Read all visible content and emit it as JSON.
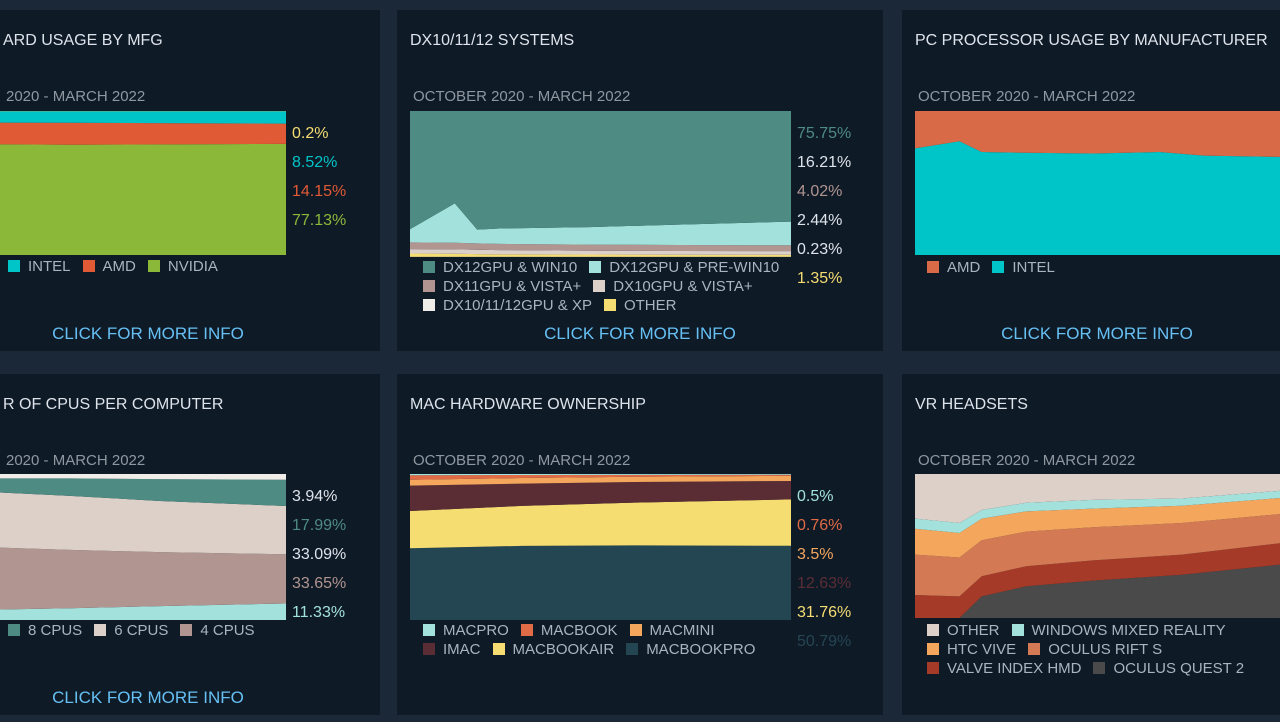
{
  "panels": [
    {
      "title": "ARD USAGE BY MFG",
      "date_range": "2020 - MARCH 2022",
      "more_link": "CLICK FOR MORE INFO",
      "legend": [
        {
          "label": "INTEL",
          "color": "#00c5c8"
        },
        {
          "label": "AMD",
          "color": "#e05a35"
        },
        {
          "label": "NVIDIA",
          "color": "#8cb83a"
        }
      ]
    },
    {
      "title": "DX10/11/12 SYSTEMS",
      "date_range": "OCTOBER 2020 - MARCH 2022",
      "more_link": "CLICK FOR MORE INFO",
      "legend": [
        {
          "label": "DX12GPU & WIN10",
          "color": "#4e8b82"
        },
        {
          "label": "DX12GPU & PRE-WIN10",
          "color": "#a3e2dc"
        },
        {
          "label": "DX11GPU & VISTA+",
          "color": "#b09590"
        },
        {
          "label": "DX10GPU & VISTA+",
          "color": "#dcd0c8"
        },
        {
          "label": "DX10/11/12GPU & XP",
          "color": "#f0ece8"
        },
        {
          "label": "OTHER",
          "color": "#f5dd72"
        }
      ]
    },
    {
      "title": "PC PROCESSOR USAGE BY MANUFACTURER",
      "date_range": "OCTOBER 2020 - MARCH 2022",
      "more_link": "CLICK FOR MORE INFO",
      "legend": [
        {
          "label": "AMD",
          "color": "#d86a48"
        },
        {
          "label": "INTEL",
          "color": "#00c5c8"
        }
      ]
    },
    {
      "title": "R OF CPUS PER COMPUTER",
      "date_range": "2020 - MARCH 2022",
      "more_link": "CLICK FOR MORE INFO",
      "legend": [
        {
          "label": "8 CPUS",
          "color": "#4e8b82"
        },
        {
          "label": "6 CPUS",
          "color": "#dcd0c8"
        },
        {
          "label": "4 CPUS",
          "color": "#b09590"
        }
      ]
    },
    {
      "title": "MAC HARDWARE OWNERSHIP",
      "date_range": "OCTOBER 2020 - MARCH 2022",
      "legend": [
        {
          "label": "MACPRO",
          "color": "#a3e2dc"
        },
        {
          "label": "MACBOOK",
          "color": "#e06b46"
        },
        {
          "label": "MACMINI",
          "color": "#f4a65c"
        },
        {
          "label": "IMAC",
          "color": "#5a2d35"
        },
        {
          "label": "MACBOOKAIR",
          "color": "#f5dd72"
        },
        {
          "label": "MACBOOKPRO",
          "color": "#244552"
        }
      ]
    },
    {
      "title": "VR HEADSETS",
      "date_range": "OCTOBER 2020 - MARCH 2022",
      "legend": [
        {
          "label": "OTHER",
          "color": "#dcd0c8"
        },
        {
          "label": "WINDOWS MIXED REALITY",
          "color": "#a3e2dc"
        },
        {
          "label": "HTC VIVE",
          "color": "#f4a65c"
        },
        {
          "label": "OCULUS RIFT S",
          "color": "#d37a55"
        },
        {
          "label": "VALVE INDEX HMD",
          "color": "#a53a28"
        },
        {
          "label": "OCULUS QUEST 2",
          "color": "#4a4a4a"
        }
      ]
    }
  ],
  "chart_data": [
    {
      "type": "area",
      "x": [
        "2020-10",
        "2021-03",
        "2021-08",
        "2022-03"
      ],
      "stacked": true,
      "series": [
        {
          "name": "NVIDIA",
          "values": [
            77.0,
            76.6,
            76.8,
            77.13
          ],
          "color": "#8cb83a"
        },
        {
          "name": "AMD",
          "values": [
            15.0,
            15.2,
            14.8,
            14.15
          ],
          "color": "#e05a35"
        },
        {
          "name": "INTEL",
          "values": [
            7.8,
            8.0,
            8.2,
            8.52
          ],
          "color": "#00c5c8"
        },
        {
          "name": "",
          "values": [
            0.2,
            0.2,
            0.2,
            0.2
          ],
          "color": "#f5dd72"
        }
      ],
      "value_labels": [
        {
          "text": "0.2%",
          "color": "#f5dd72"
        },
        {
          "text": "8.52%",
          "color": "#00c5c8"
        },
        {
          "text": "14.15%",
          "color": "#e05a35"
        },
        {
          "text": "77.13%",
          "color": "#8cb83a"
        }
      ]
    },
    {
      "type": "area",
      "stacked": true,
      "x": [
        "2020-10",
        "2020-12",
        "2021-01",
        "2021-02",
        "2021-06",
        "2021-10",
        "2022-03"
      ],
      "series": [
        {
          "name": "DX10/11/12GPU & XP",
          "values": [
            0.2,
            0.2,
            0.2,
            0.2,
            0.2,
            0.2,
            0.23
          ],
          "color": "#f0ece8"
        },
        {
          "name": "OTHER",
          "values": [
            2.2,
            2.0,
            1.8,
            1.7,
            1.5,
            1.4,
            1.35
          ],
          "color": "#f5dd72"
        },
        {
          "name": "DX10GPU & VISTA+",
          "values": [
            3.0,
            3.0,
            2.9,
            2.8,
            2.6,
            2.5,
            2.44
          ],
          "color": "#dcd0c8"
        },
        {
          "name": "DX11GPU & VISTA+",
          "values": [
            4.6,
            4.5,
            4.4,
            4.3,
            4.2,
            4.1,
            4.02
          ],
          "color": "#b09590"
        },
        {
          "name": "DX12GPU & PRE-WIN10",
          "values": [
            9.0,
            27.0,
            9.5,
            10.5,
            12.0,
            14.0,
            16.21
          ],
          "color": "#a3e2dc"
        },
        {
          "name": "DX12GPU & WIN10",
          "values": [
            81.0,
            63.3,
            81.2,
            80.5,
            79.5,
            77.8,
            75.75
          ],
          "color": "#4e8b82"
        }
      ],
      "value_labels": [
        {
          "text": "75.75%",
          "color": "#4e8b82"
        },
        {
          "text": "16.21%",
          "color": "#dde3ea"
        },
        {
          "text": "4.02%",
          "color": "#b09590"
        },
        {
          "text": "2.44%",
          "color": "#dde3ea"
        },
        {
          "text": "0.23%",
          "color": "#dde3ea"
        },
        {
          "text": "1.35%",
          "color": "#f5dd72"
        }
      ]
    },
    {
      "type": "area",
      "stacked": true,
      "x": [
        "2020-10",
        "2020-12",
        "2021-01",
        "2021-03",
        "2021-06",
        "2021-09",
        "2021-11",
        "2022-03"
      ],
      "series": [
        {
          "name": "INTEL",
          "values": [
            74.0,
            79.0,
            71.5,
            71.0,
            70.5,
            71.5,
            69.0,
            68.0
          ],
          "color": "#00c5c8"
        },
        {
          "name": "AMD",
          "values": [
            26.0,
            21.0,
            28.5,
            29.0,
            29.5,
            28.5,
            31.0,
            32.0
          ],
          "color": "#d86a48"
        }
      ]
    },
    {
      "type": "area",
      "stacked": true,
      "x": [
        "2020-10",
        "2021-03",
        "2021-08",
        "2022-03"
      ],
      "series": [
        {
          "name": "",
          "values": [
            7.0,
            8.0,
            9.5,
            11.33
          ],
          "color": "#a3e2dc"
        },
        {
          "name": "4 CPUS",
          "values": [
            43.0,
            40.0,
            37.0,
            33.65
          ],
          "color": "#b09590"
        },
        {
          "name": "6 CPUS",
          "values": [
            38.0,
            37.0,
            35.0,
            33.09
          ],
          "color": "#dcd0c8"
        },
        {
          "name": "8 CPUS",
          "values": [
            9.0,
            12.0,
            15.0,
            17.99
          ],
          "color": "#4e8b82"
        },
        {
          "name": "",
          "values": [
            3.0,
            3.0,
            3.5,
            3.94
          ],
          "color": "#f0ece8"
        }
      ],
      "value_labels": [
        {
          "text": "3.94%",
          "color": "#dde3ea"
        },
        {
          "text": "17.99%",
          "color": "#4e8b82"
        },
        {
          "text": "33.09%",
          "color": "#dde3ea"
        },
        {
          "text": "33.65%",
          "color": "#b09590"
        },
        {
          "text": "11.33%",
          "color": "#a3e2dc"
        }
      ]
    },
    {
      "type": "area",
      "stacked": true,
      "x": [
        "2020-10",
        "2021-03",
        "2021-08",
        "2022-03"
      ],
      "series": [
        {
          "name": "MACBOOKPRO",
          "values": [
            48.0,
            50.0,
            50.5,
            50.79
          ],
          "color": "#244552"
        },
        {
          "name": "MACBOOKAIR",
          "values": [
            25.0,
            27.0,
            29.0,
            31.76
          ],
          "color": "#f5dd72"
        },
        {
          "name": "IMAC",
          "values": [
            17.0,
            15.0,
            14.0,
            12.63
          ],
          "color": "#5a2d35"
        },
        {
          "name": "MACMINI",
          "values": [
            4.0,
            3.8,
            3.6,
            3.5
          ],
          "color": "#f4a65c"
        },
        {
          "name": "MACBOOK",
          "values": [
            3.0,
            2.0,
            1.2,
            0.76
          ],
          "color": "#e06b46"
        },
        {
          "name": "MACPRO",
          "values": [
            0.8,
            0.7,
            0.6,
            0.5
          ],
          "color": "#a3e2dc"
        }
      ],
      "value_labels": [
        {
          "text": "0.5%",
          "color": "#a3e2dc"
        },
        {
          "text": "0.76%",
          "color": "#e06b46"
        },
        {
          "text": "3.5%",
          "color": "#f4a65c"
        },
        {
          "text": "12.63%",
          "color": "#5a2d35"
        },
        {
          "text": "31.76%",
          "color": "#f5dd72"
        },
        {
          "text": "50.79%",
          "color": "#244552"
        }
      ]
    },
    {
      "type": "area",
      "stacked": true,
      "x": [
        "2020-10",
        "2020-12",
        "2021-01",
        "2021-03",
        "2021-06",
        "2021-10",
        "2022-03"
      ],
      "series": [
        {
          "name": "OCULUS QUEST 2",
          "values": [
            0,
            0,
            15,
            22,
            26,
            30,
            38
          ],
          "color": "#4a4a4a"
        },
        {
          "name": "VALVE INDEX HMD",
          "values": [
            16,
            15,
            14,
            14,
            14,
            14,
            15
          ],
          "color": "#a53a28"
        },
        {
          "name": "OCULUS RIFT S",
          "values": [
            28,
            27,
            25,
            24,
            23,
            22,
            20
          ],
          "color": "#d37a55"
        },
        {
          "name": "HTC VIVE",
          "values": [
            18,
            17,
            15,
            14,
            13,
            12,
            11
          ],
          "color": "#f4a65c"
        },
        {
          "name": "WINDOWS MIXED REALITY",
          "values": [
            7,
            7,
            6,
            6,
            6,
            5,
            5
          ],
          "color": "#a3e2dc"
        },
        {
          "name": "OTHER",
          "values": [
            31,
            34,
            25,
            20,
            18,
            17,
            11
          ],
          "color": "#dcd0c8"
        }
      ]
    }
  ]
}
